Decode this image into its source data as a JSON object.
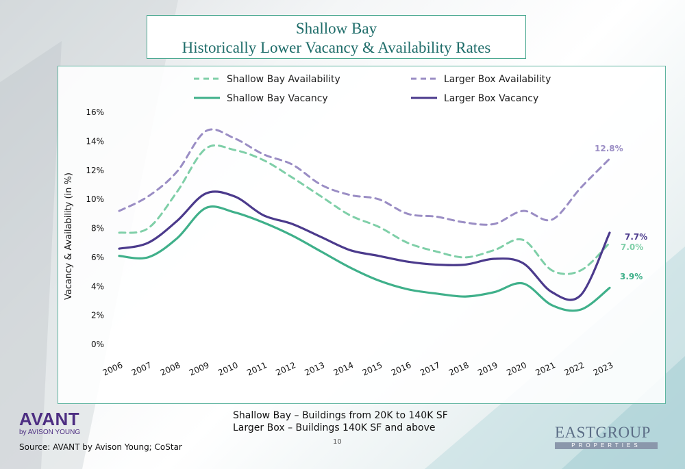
{
  "title": {
    "line1": "Shallow Bay",
    "line2": "Historically Lower Vacancy & Availability Rates"
  },
  "chart_data": {
    "type": "line",
    "ylabel": "Vacancy & Availability (in %)",
    "xlabel": "",
    "ylim": [
      0,
      16
    ],
    "yticks": [
      0,
      2,
      4,
      6,
      8,
      10,
      12,
      14,
      16
    ],
    "ytick_labels": [
      "0%",
      "2%",
      "4%",
      "6%",
      "8%",
      "10%",
      "12%",
      "14%",
      "16%"
    ],
    "grid": false,
    "legend_position": "top",
    "categories": [
      "2006",
      "2007",
      "2008",
      "2009",
      "2010",
      "2011",
      "2012",
      "2013",
      "2014",
      "2015",
      "2016",
      "2017",
      "2018",
      "2019",
      "2020",
      "2021",
      "2022",
      "2023"
    ],
    "series": [
      {
        "name": "Shallow Bay Availability",
        "style": "dashed",
        "color": "#7fcfa8",
        "values": [
          7.7,
          8.0,
          10.5,
          13.5,
          13.4,
          12.7,
          11.5,
          10.2,
          8.9,
          8.1,
          7.0,
          6.4,
          6.0,
          6.5,
          7.2,
          5.1,
          5.1,
          7.0
        ]
      },
      {
        "name": "Larger Box Availability",
        "style": "dashed",
        "color": "#9a8dc4",
        "values": [
          9.2,
          10.2,
          11.9,
          14.7,
          14.2,
          13.1,
          12.4,
          11.0,
          10.3,
          10.0,
          9.0,
          8.8,
          8.4,
          8.3,
          9.2,
          8.6,
          10.8,
          12.8
        ]
      },
      {
        "name": "Shallow Bay Vacancy",
        "style": "solid",
        "color": "#3fb08a",
        "values": [
          6.1,
          6.0,
          7.3,
          9.4,
          9.1,
          8.4,
          7.5,
          6.4,
          5.3,
          4.4,
          3.8,
          3.5,
          3.3,
          3.6,
          4.2,
          2.7,
          2.4,
          3.9
        ]
      },
      {
        "name": "Larger Box Vacancy",
        "style": "solid",
        "color": "#4b3a8c",
        "values": [
          6.6,
          7.0,
          8.5,
          10.4,
          10.2,
          8.9,
          8.3,
          7.4,
          6.5,
          6.1,
          5.7,
          5.5,
          5.5,
          5.9,
          5.6,
          3.6,
          3.4,
          7.7
        ]
      }
    ],
    "end_labels": [
      {
        "series": "Larger Box Availability",
        "text": "12.8%"
      },
      {
        "series": "Larger Box Vacancy",
        "text": "7.7%"
      },
      {
        "series": "Shallow Bay Availability",
        "text": "7.0%"
      },
      {
        "series": "Shallow Bay Vacancy",
        "text": "3.9%"
      }
    ]
  },
  "footer": {
    "subtitle_line1": "Shallow Bay – Buildings from 20K to 140K SF",
    "subtitle_line2": "Larger Box – Buildings 140K SF and above",
    "page_number": "10",
    "source": "Source: AVANT by Avison Young; CoStar"
  },
  "logos": {
    "avant_main": "AVANT",
    "avant_sub": "by AVISON YOUNG",
    "eastgroup_main": "EASTGROUP",
    "eastgroup_sub": "PROPERTIES"
  }
}
